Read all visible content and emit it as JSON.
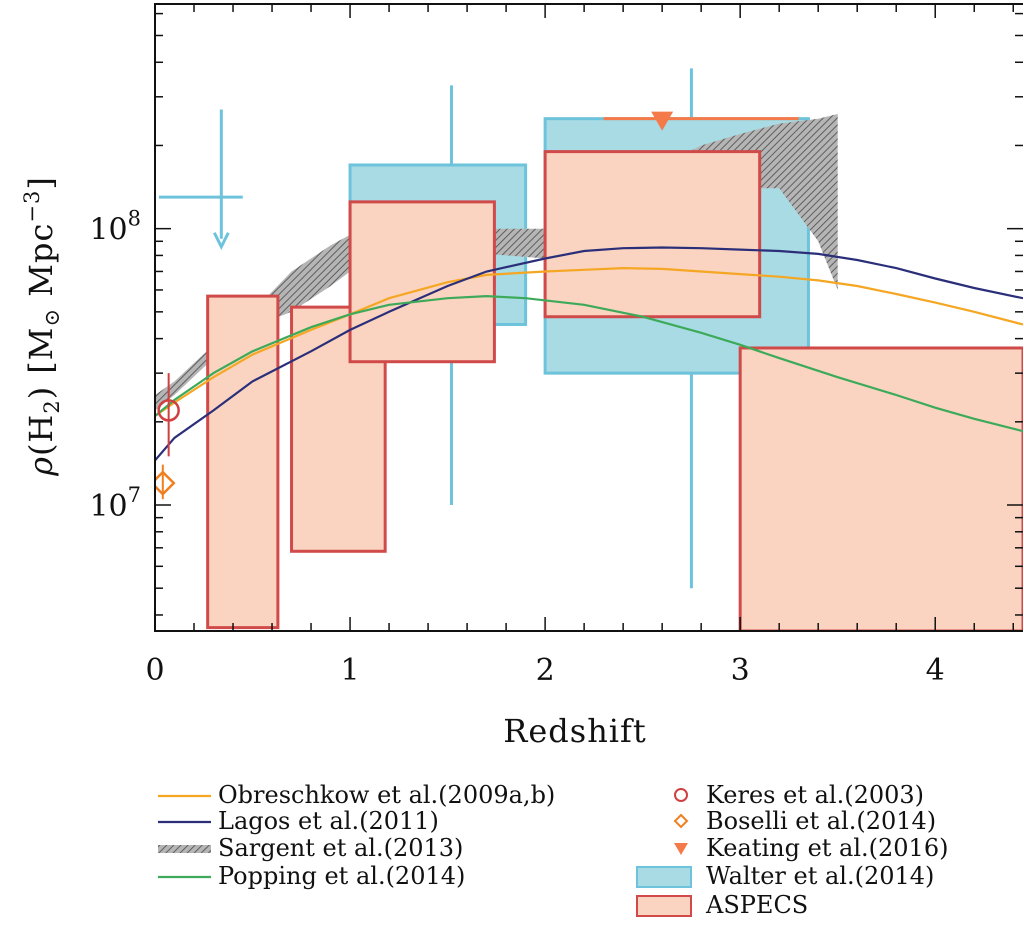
{
  "chart_data": {
    "type": "line",
    "title": "",
    "xlabel": "Redshift",
    "ylabel_parts": {
      "rho": "ρ",
      "open": "(H",
      "sub": "2",
      "close": ")",
      "units_pre": "[M",
      "sun": "⊙",
      "units_mid": " Mpc",
      "exp": "−3",
      "units_end": "]"
    },
    "xlim": [
      0,
      4.45
    ],
    "ylim": [
      3500000,
      650000000
    ],
    "yscale": "log",
    "x_ticks": [
      0,
      1,
      2,
      3,
      4
    ],
    "x_tick_labels": [
      "0",
      "1",
      "2",
      "3",
      "4"
    ],
    "y_tick_labels": [
      {
        "value": 100000000,
        "base": "10",
        "exp": "8"
      },
      {
        "value": 10000000,
        "base": "10",
        "exp": "7"
      }
    ],
    "colors": {
      "obreschkow": "#f5a623",
      "lagos": "#2b2f7a",
      "sargent": "#8a8a8a",
      "popping": "#3daa5a",
      "keres": "#d04040",
      "boselli": "#f07f20",
      "keating": "#f57a4a",
      "walter_fill": "#a8dbe3",
      "walter_edge": "#6ec3dc",
      "aspecs_fill": "#fad4c0",
      "aspecs_edge": "#d04a4a"
    },
    "series": [
      {
        "name": "Obreschkow et al.(2009a,b)",
        "key": "obreschkow",
        "x": [
          0.0,
          0.1,
          0.3,
          0.5,
          0.8,
          1.0,
          1.2,
          1.5,
          1.7,
          2.0,
          2.2,
          2.4,
          2.6,
          2.8,
          3.0,
          3.2,
          3.4,
          3.6,
          3.8,
          4.0,
          4.2,
          4.45
        ],
        "y": [
          21000000,
          23500000,
          29000000,
          35000000,
          43000000,
          49000000,
          56000000,
          64000000,
          68000000,
          70000000,
          71000000,
          72000000,
          71500000,
          70000000,
          68500000,
          67000000,
          65000000,
          62000000,
          58000000,
          54000000,
          50000000,
          45000000
        ]
      },
      {
        "name": "Lagos et al.(2011)",
        "key": "lagos",
        "x": [
          0.0,
          0.1,
          0.3,
          0.5,
          0.8,
          1.0,
          1.2,
          1.5,
          1.7,
          2.0,
          2.2,
          2.4,
          2.6,
          2.8,
          3.0,
          3.2,
          3.4,
          3.6,
          3.8,
          4.0,
          4.2,
          4.45
        ],
        "y": [
          14500000,
          17500000,
          22000000,
          28000000,
          36000000,
          43000000,
          50000000,
          62000000,
          70000000,
          78000000,
          83000000,
          85000000,
          85500000,
          85000000,
          84000000,
          83000000,
          81000000,
          77000000,
          72000000,
          66000000,
          61000000,
          56000000
        ]
      },
      {
        "name": "Popping et al.(2014)",
        "key": "popping",
        "x": [
          0.0,
          0.1,
          0.3,
          0.5,
          0.8,
          1.0,
          1.2,
          1.5,
          1.7,
          1.9,
          2.2,
          2.5,
          2.8,
          3.0,
          3.2,
          3.5,
          3.8,
          4.0,
          4.2,
          4.45
        ],
        "y": [
          21000000,
          24000000,
          30000000,
          36000000,
          44000000,
          49000000,
          53000000,
          56000000,
          57000000,
          56000000,
          53000000,
          48000000,
          42000000,
          38000000,
          34000000,
          29000000,
          25000000,
          22500000,
          20500000,
          18500000
        ]
      }
    ],
    "sargent_band": {
      "name": "Sargent et al.(2013)",
      "key": "sargent",
      "x": [
        0.0,
        0.1,
        0.3,
        0.5,
        0.7,
        0.9,
        1.0,
        1.2,
        1.4,
        1.6,
        1.8,
        2.0,
        2.2,
        2.4,
        2.6,
        2.8,
        3.0,
        3.2,
        3.4,
        3.5
      ],
      "lower": [
        22000000,
        25000000,
        34000000,
        44000000,
        50000000,
        62000000,
        70000000,
        80000000,
        82000000,
        82000000,
        80000000,
        78000000,
        82000000,
        88000000,
        100000000,
        120000000,
        140000000,
        140000000,
        90000000,
        60000000
      ],
      "upper": [
        25000000,
        28000000,
        38000000,
        50000000,
        70000000,
        87000000,
        95000000,
        100000000,
        100000000,
        100000000,
        100000000,
        100000000,
        110000000,
        140000000,
        170000000,
        200000000,
        220000000,
        240000000,
        250000000,
        260000000
      ]
    },
    "walter_boxes": [
      {
        "x0": 1.0,
        "x1": 1.9,
        "y0": 45000000,
        "y1": 170000000,
        "xc": 1.52,
        "err_lo": 10000000,
        "err_hi": 330000000
      },
      {
        "x0": 2.0,
        "x1": 3.35,
        "y0": 30000000,
        "y1": 250000000,
        "xc": 2.75,
        "err_lo": 5000000,
        "err_hi": 380000000
      }
    ],
    "walter_limit": {
      "x": 0.34,
      "x0": 0.02,
      "x1": 0.45,
      "y": 130000000,
      "y_top": 270000000,
      "y_arrow": 86000000
    },
    "aspecs_boxes": [
      {
        "x0": 0.27,
        "x1": 0.63,
        "y0": 3600000,
        "y1": 57000000
      },
      {
        "x0": 0.7,
        "x1": 1.18,
        "y0": 6800000,
        "y1": 52000000
      },
      {
        "x0": 1.0,
        "x1": 1.74,
        "y0": 33000000,
        "y1": 125000000
      },
      {
        "x0": 2.0,
        "x1": 3.1,
        "y0": 48000000,
        "y1": 190000000
      },
      {
        "x0": 3.0,
        "x1": 4.45,
        "y0": 3500000,
        "y1": 37000000
      }
    ],
    "keres": {
      "x": 0.07,
      "y": 22000000,
      "err_lo": 15000000,
      "err_hi": 30000000
    },
    "boselli": {
      "x": 0.04,
      "y": 12000000,
      "err_lo": 10500000,
      "err_hi": 14000000
    },
    "keating": {
      "x": 2.6,
      "y": 250000000,
      "x0": 2.3,
      "x1": 3.3
    },
    "legend": {
      "left": [
        {
          "key": "obreschkow",
          "label": "Obreschkow et al.(2009a,b)",
          "kind": "line"
        },
        {
          "key": "lagos",
          "label": "Lagos et al.(2011)",
          "kind": "line"
        },
        {
          "key": "sargent",
          "label": "Sargent et al.(2013)",
          "kind": "hatch"
        },
        {
          "key": "popping",
          "label": "Popping et al.(2014)",
          "kind": "line"
        }
      ],
      "right": [
        {
          "key": "keres",
          "label": "Keres et al.(2003)",
          "kind": "circle"
        },
        {
          "key": "boselli",
          "label": "Boselli et al.(2014)",
          "kind": "diamond"
        },
        {
          "key": "keating",
          "label": "Keating et al.(2016)",
          "kind": "triangle"
        },
        {
          "key": "walter",
          "label": "Walter et al.(2014)",
          "kind": "box-blue"
        },
        {
          "key": "aspecs",
          "label": "ASPECS",
          "kind": "box-red"
        }
      ]
    }
  }
}
